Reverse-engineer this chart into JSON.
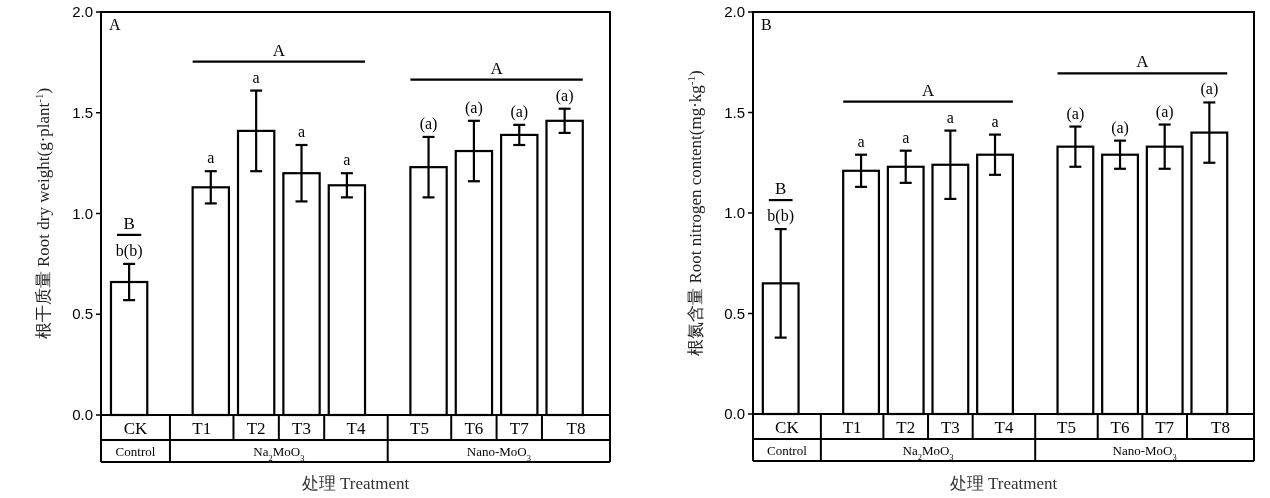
{
  "chart_data": [
    {
      "type": "bar",
      "title": "A",
      "xlabel": "处理 Treatment",
      "ylabel": "根干质量 Root dry weight(g·plant$^{-1}$)",
      "categories": [
        "CK",
        "T1",
        "T2",
        "T3",
        "T4",
        "T5",
        "T6",
        "T7",
        "T8"
      ],
      "values": [
        0.66,
        1.13,
        1.41,
        1.2,
        1.14,
        1.23,
        1.31,
        1.39,
        1.46
      ],
      "errors": [
        0.09,
        0.08,
        0.2,
        0.14,
        0.06,
        0.15,
        0.15,
        0.05,
        0.06
      ],
      "color": "#ffffff",
      "ylim": [
        0,
        2
      ],
      "yticks": [
        {
          "value": 0,
          "label": "0.0"
        },
        {
          "value": 0.5,
          "label": "0.5"
        },
        {
          "value": 1,
          "label": "1.0"
        },
        {
          "value": 1.5,
          "label": "1.5"
        },
        {
          "value": 2,
          "label": "2.0"
        }
      ],
      "annotations": [
        "B",
        "A",
        "A",
        "Control",
        "Na$_{2}$MoO$_{3}$",
        "Nano-MoO$_{3}$",
        "b(b)",
        "a",
        "a",
        "a",
        "a",
        "(a)",
        "(a)",
        "(a)",
        "(a)"
      ]
    },
    {
      "type": "bar",
      "title": "B",
      "xlabel": "处理 Treatment",
      "ylabel": "根氮含量 Root nitrogen content(mg·kg$^{-1}$)",
      "categories": [
        "CK",
        "T1",
        "T2",
        "T3",
        "T4",
        "T5",
        "T6",
        "T7",
        "T8"
      ],
      "values": [
        0.65,
        1.21,
        1.23,
        1.24,
        1.29,
        1.33,
        1.29,
        1.33,
        1.4
      ],
      "errors": [
        0.27,
        0.08,
        0.08,
        0.17,
        0.1,
        0.1,
        0.07,
        0.11,
        0.15
      ],
      "color": "#ffffff",
      "ylim": [
        0,
        2
      ],
      "yticks": [
        {
          "value": 0,
          "label": "0.0"
        },
        {
          "value": 0.5,
          "label": "0.5"
        },
        {
          "value": 1,
          "label": "1.0"
        },
        {
          "value": 1.5,
          "label": "1.5"
        },
        {
          "value": 2,
          "label": "2.0"
        }
      ],
      "annotations": [
        "B",
        "A",
        "A",
        "Control",
        "Na$_{2}$MoO$_{3}$",
        "Nano-MoO$_{3}$",
        "b(b)",
        "a",
        "a",
        "a",
        "a",
        "(a)",
        "(a)",
        "(a)",
        "(a)"
      ]
    }
  ]
}
